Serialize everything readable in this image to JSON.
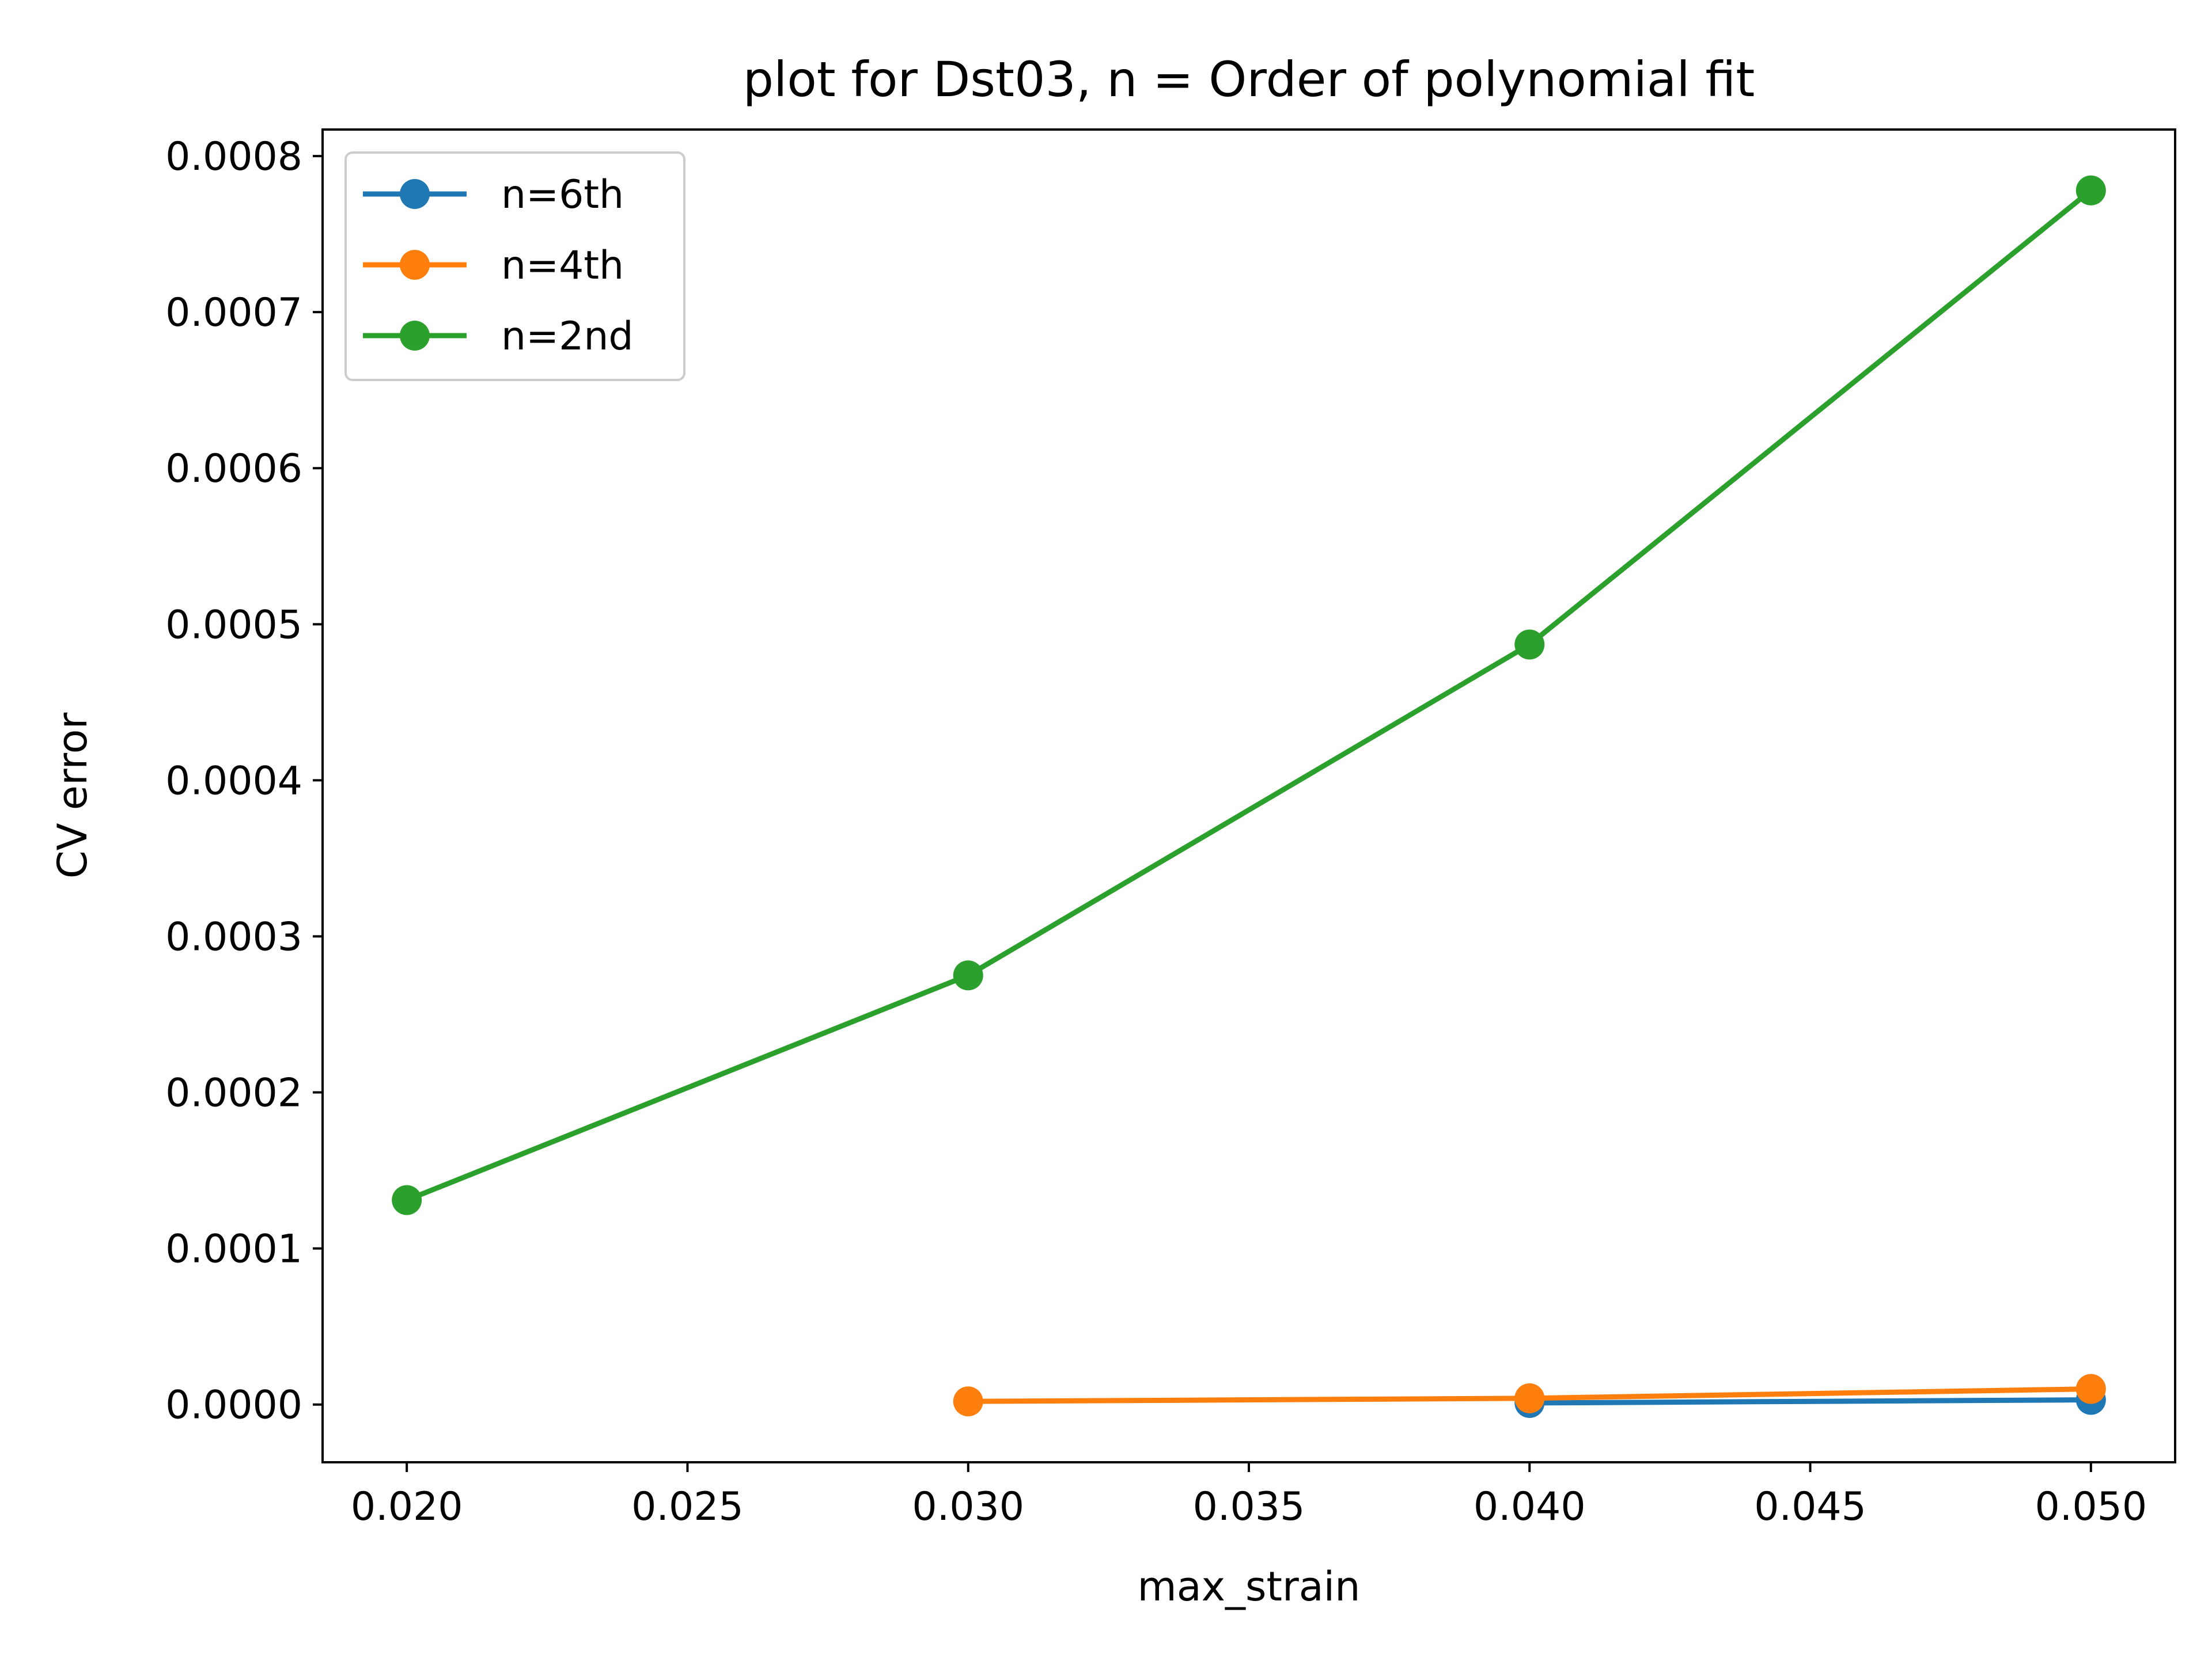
{
  "chart_data": {
    "type": "line",
    "title": "plot for Dst03, n = Order of polynomial fit",
    "xlabel": "max_strain",
    "ylabel": "CV error",
    "xlim": [
      0.0185,
      0.0515
    ],
    "ylim": [
      -3.7e-05,
      0.000817
    ],
    "x_ticks": [
      0.02,
      0.025,
      0.03,
      0.035,
      0.04,
      0.045,
      0.05
    ],
    "x_tick_labels": [
      "0.020",
      "0.025",
      "0.030",
      "0.035",
      "0.040",
      "0.045",
      "0.050"
    ],
    "y_ticks": [
      0.0,
      0.0001,
      0.0002,
      0.0003,
      0.0004,
      0.0005,
      0.0006,
      0.0007,
      0.0008
    ],
    "y_tick_labels": [
      "0.0000",
      "0.0001",
      "0.0002",
      "0.0003",
      "0.0004",
      "0.0005",
      "0.0006",
      "0.0007",
      "0.0008"
    ],
    "grid": false,
    "legend_position": "upper-left",
    "series": [
      {
        "name": "n=6th",
        "color": "#1f77b4",
        "x": [
          0.04,
          0.05
        ],
        "y": [
          1e-06,
          3e-06
        ]
      },
      {
        "name": "n=4th",
        "color": "#ff7f0e",
        "x": [
          0.03,
          0.04,
          0.05
        ],
        "y": [
          2e-06,
          4e-06,
          1e-05
        ]
      },
      {
        "name": "n=2nd",
        "color": "#2ca02c",
        "x": [
          0.02,
          0.03,
          0.04,
          0.05
        ],
        "y": [
          0.000131,
          0.000275,
          0.000487,
          0.000778
        ]
      }
    ]
  }
}
